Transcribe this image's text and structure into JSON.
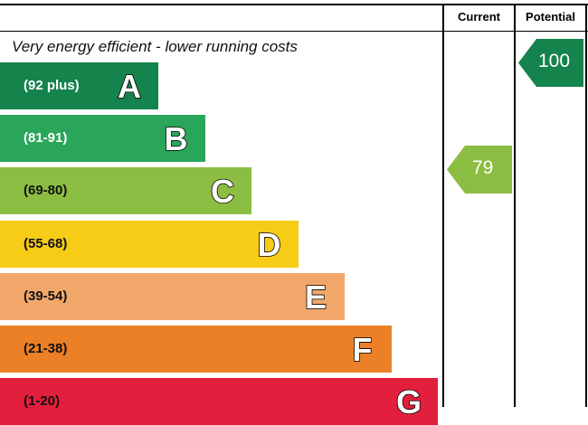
{
  "chart_data": {
    "type": "energy-rating",
    "caption": "Very energy efficient - lower running costs",
    "columns": [
      "Current",
      "Potential"
    ],
    "bands": [
      {
        "range": "(92 plus)",
        "letter": "A",
        "color": "#15834c",
        "text_color": "#ffffff"
      },
      {
        "range": "(81-91)",
        "letter": "B",
        "color": "#2aa65a",
        "text_color": "#ffffff"
      },
      {
        "range": "(69-80)",
        "letter": "C",
        "color": "#8cbd43",
        "text_color": "#111111"
      },
      {
        "range": "(55-68)",
        "letter": "D",
        "color": "#f6cc16",
        "text_color": "#111111"
      },
      {
        "range": "(39-54)",
        "letter": "E",
        "color": "#f2a76a",
        "text_color": "#111111"
      },
      {
        "range": "(21-38)",
        "letter": "F",
        "color": "#ec8026",
        "text_color": "#111111"
      },
      {
        "range": "(1-20)",
        "letter": "G",
        "color": "#e21f3c",
        "text_color": "#111111"
      }
    ],
    "current": {
      "value": 79,
      "band": "C",
      "color": "#8cbd43"
    },
    "potential": {
      "value": 100,
      "band": "A",
      "color": "#15834c"
    }
  }
}
